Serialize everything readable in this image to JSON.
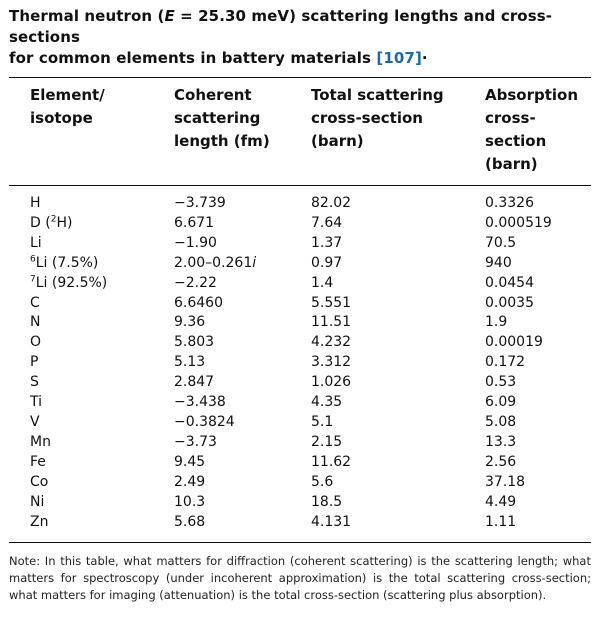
{
  "title": {
    "line1_pre": "Thermal neutron (",
    "energy_var": "E",
    "line1_post": " = 25.30 meV) scattering lengths and cross-sections",
    "line2": "for common elements in battery materials ",
    "ref": "[107]",
    "trail": "·"
  },
  "table": {
    "headers": [
      [
        "Element/",
        "isotope"
      ],
      [
        "Coherent",
        "scattering",
        "length (fm)"
      ],
      [
        "Total scattering",
        "cross-section",
        "(barn)"
      ],
      [
        "Absorption",
        "cross-section",
        "(barn)"
      ]
    ],
    "rows": [
      {
        "sup": "",
        "element": "H",
        "elem_suffix": "",
        "coherent": "−3.739",
        "coh_imag": "",
        "total": "82.02",
        "absorption": "0.3326"
      },
      {
        "sup": "",
        "element": "D (",
        "elem_sup": "2",
        "elem_suffix": "H)",
        "coherent": "6.671",
        "coh_imag": "",
        "total": "7.64",
        "absorption": "0.000519"
      },
      {
        "sup": "",
        "element": "Li",
        "elem_suffix": "",
        "coherent": "−1.90",
        "coh_imag": "",
        "total": "1.37",
        "absorption": "70.5"
      },
      {
        "sup": "6",
        "element": "Li (7.5%)",
        "elem_suffix": "",
        "coherent": "2.00–0.261",
        "coh_imag": "i",
        "total": "0.97",
        "absorption": "940"
      },
      {
        "sup": "7",
        "element": "Li (92.5%)",
        "elem_suffix": "",
        "coherent": "−2.22",
        "coh_imag": "",
        "total": "1.4",
        "absorption": "0.0454"
      },
      {
        "sup": "",
        "element": "C",
        "elem_suffix": "",
        "coherent": "6.6460",
        "coh_imag": "",
        "total": "5.551",
        "absorption": "0.0035"
      },
      {
        "sup": "",
        "element": "N",
        "elem_suffix": "",
        "coherent": "9.36",
        "coh_imag": "",
        "total": "11.51",
        "absorption": "1.9"
      },
      {
        "sup": "",
        "element": "O",
        "elem_suffix": "",
        "coherent": "5.803",
        "coh_imag": "",
        "total": "4.232",
        "absorption": "0.00019"
      },
      {
        "sup": "",
        "element": "P",
        "elem_suffix": "",
        "coherent": "5.13",
        "coh_imag": "",
        "total": "3.312",
        "absorption": "0.172"
      },
      {
        "sup": "",
        "element": "S",
        "elem_suffix": "",
        "coherent": "2.847",
        "coh_imag": "",
        "total": "1.026",
        "absorption": "0.53"
      },
      {
        "sup": "",
        "element": "Ti",
        "elem_suffix": "",
        "coherent": "−3.438",
        "coh_imag": "",
        "total": "4.35",
        "absorption": "6.09"
      },
      {
        "sup": "",
        "element": "V",
        "elem_suffix": "",
        "coherent": "−0.3824",
        "coh_imag": "",
        "total": "5.1",
        "absorption": "5.08"
      },
      {
        "sup": "",
        "element": "Mn",
        "elem_suffix": "",
        "coherent": "−3.73",
        "coh_imag": "",
        "total": "2.15",
        "absorption": "13.3"
      },
      {
        "sup": "",
        "element": "Fe",
        "elem_suffix": "",
        "coherent": "9.45",
        "coh_imag": "",
        "total": "11.62",
        "absorption": "2.56"
      },
      {
        "sup": "",
        "element": "Co",
        "elem_suffix": "",
        "coherent": "2.49",
        "coh_imag": "",
        "total": "5.6",
        "absorption": "37.18"
      },
      {
        "sup": "",
        "element": "Ni",
        "elem_suffix": "",
        "coherent": "10.3",
        "coh_imag": "",
        "total": "18.5",
        "absorption": "4.49"
      },
      {
        "sup": "",
        "element": "Zn",
        "elem_suffix": "",
        "coherent": "5.68",
        "coh_imag": "",
        "total": "4.131",
        "absorption": "1.11"
      }
    ]
  },
  "note": "Note: In this table, what matters for diffraction (coherent scattering) is the scattering length; what matters for spectroscopy (under incoherent approximation) is the total scattering cross-section; what matters for imaging (attenuation) is the total cross-section (scattering plus absorption).",
  "colors": {
    "reference_link": "#1e6aa8",
    "text": "#111111"
  }
}
